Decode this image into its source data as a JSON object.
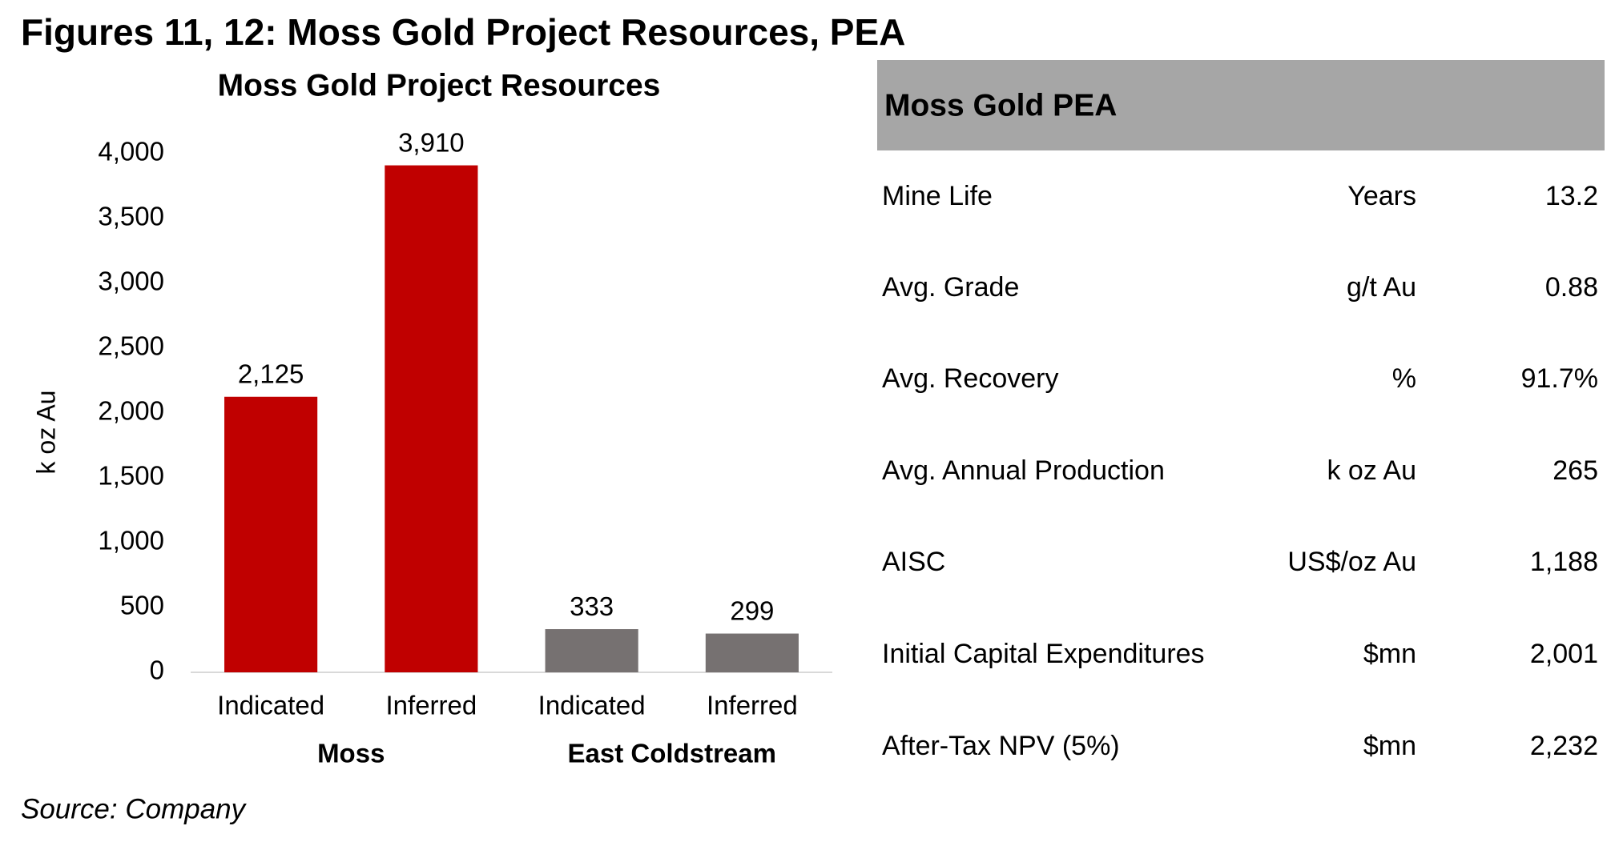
{
  "title": "Figures 11, 12: Moss Gold Project Resources, PEA",
  "chart_data": {
    "type": "bar",
    "title": "Moss Gold Project Resources",
    "ylabel": "k oz Au",
    "categories": [
      "Indicated",
      "Inferred",
      "Indicated",
      "Inferred"
    ],
    "groups": [
      "Moss",
      "East Coldstream"
    ],
    "values": [
      2125,
      3910,
      333,
      299
    ],
    "value_labels": [
      "2,125",
      "3,910",
      "333",
      "299"
    ],
    "colors": [
      "#c00000",
      "#c00000",
      "#767171",
      "#767171"
    ],
    "ylim": [
      0,
      4000
    ],
    "yticks": [
      0,
      500,
      {
        "value": 1000,
        "label": "1,000"
      },
      {
        "value": 1500,
        "label": "1,500"
      },
      {
        "value": 2000,
        "label": "2,000"
      },
      {
        "value": 2500,
        "label": "2,500"
      },
      {
        "value": 3000,
        "label": "3,000"
      },
      {
        "value": 3500,
        "label": "3,500"
      },
      {
        "value": 4000,
        "label": "4,000"
      }
    ],
    "grid": false
  },
  "table": {
    "title": "Moss Gold PEA",
    "rows": [
      [
        "Mine Life",
        "Years",
        "13.2"
      ],
      [
        "Avg. Grade",
        "g/t Au",
        "0.88"
      ],
      [
        "Avg. Recovery",
        "%",
        "91.7%"
      ],
      [
        "Avg. Annual Production",
        "k oz Au",
        "265"
      ],
      [
        "AISC",
        "US$/oz Au",
        "1,188"
      ],
      [
        "Initial Capital Expenditures",
        "$mn",
        "2,001"
      ],
      [
        "After-Tax NPV (5%)",
        "$mn",
        "2,232"
      ]
    ]
  },
  "source": "Source: Company"
}
